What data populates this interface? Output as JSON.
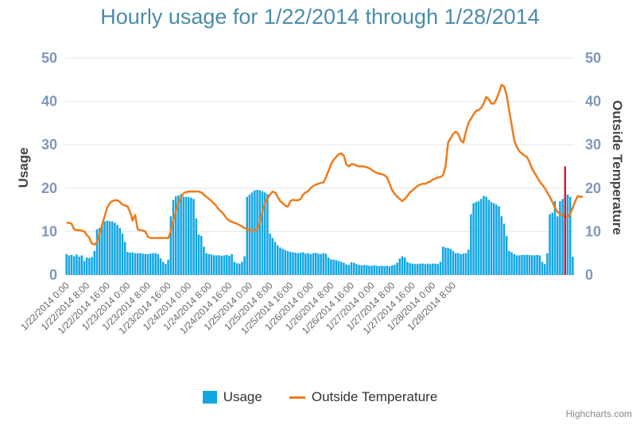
{
  "chart_data": {
    "type": "bar",
    "title": "Hourly usage for 1/22/2014 through 1/28/2014",
    "ylabel": "Usage",
    "y2label": "Outside Temperature",
    "ylim": [
      0,
      50
    ],
    "y2lim": [
      0,
      50
    ],
    "yticks": [
      "0",
      "10",
      "20",
      "30",
      "40",
      "50"
    ],
    "y2ticks": [
      "0",
      "10",
      "20",
      "30",
      "40",
      "50"
    ],
    "grid": true,
    "legend_position": "bottom",
    "xticks": [
      "1/22/2014 0:00",
      "1/22/2014 8:00",
      "1/22/2014 16:00",
      "1/23/2014 0:00",
      "1/23/2014 8:00",
      "1/23/2014 16:00",
      "1/24/2014 0:00",
      "1/24/2014 8:00",
      "1/24/2014 16:00",
      "1/25/2014 0:00",
      "1/25/2014 8:00",
      "1/25/2014 16:00",
      "1/26/2014 0:00",
      "1/26/2014 8:00",
      "1/26/2014 16:00",
      "1/27/2014 0:00",
      "1/27/2014 8:00",
      "1/27/2014 16:00",
      "1/28/2014 0:00",
      "1/28/2014 8:00"
    ],
    "series": [
      {
        "name": "Usage",
        "type": "column",
        "color": "#12a6e3",
        "values": [
          4.8,
          4.5,
          4.6,
          4.3,
          4.7,
          4.2,
          4.5,
          3.2,
          4.0,
          3.9,
          4.1,
          5.5,
          10.5,
          10.8,
          11.5,
          12.3,
          12.5,
          12.4,
          12.3,
          12.0,
          11.5,
          10.8,
          9.5,
          7.6,
          5.3,
          5.1,
          5.2,
          5.0,
          5.0,
          5.0,
          4.9,
          4.8,
          4.8,
          4.9,
          5.0,
          5.0,
          4.8,
          3.8,
          3.0,
          2.5,
          3.5,
          13.5,
          17.3,
          18.1,
          18.3,
          18.6,
          18.0,
          18.0,
          17.9,
          17.8,
          17.5,
          13.0,
          9.3,
          9.0,
          6.5,
          5.0,
          4.8,
          4.7,
          4.5,
          4.5,
          4.5,
          4.4,
          4.5,
          4.6,
          4.4,
          4.8,
          3.0,
          2.7,
          2.6,
          3.0,
          4.3,
          18.0,
          18.5,
          19.0,
          19.5,
          19.6,
          19.5,
          19.3,
          19.0,
          18.6,
          9.5,
          8.5,
          7.6,
          6.8,
          6.3,
          6.0,
          5.7,
          5.5,
          5.3,
          5.2,
          5.1,
          5.0,
          5.1,
          5.2,
          4.9,
          5.0,
          4.8,
          5.0,
          5.1,
          4.9,
          4.8,
          5.0,
          4.9,
          4.0,
          3.6,
          3.5,
          3.4,
          3.2,
          3.0,
          2.8,
          2.4,
          2.3,
          2.9,
          2.8,
          2.5,
          2.3,
          2.2,
          2.3,
          2.2,
          2.1,
          2.1,
          2.2,
          2.1,
          2.0,
          2.1,
          2.0,
          2.1,
          2.0,
          2.2,
          2.3,
          2.8,
          3.8,
          4.3,
          4.0,
          3.0,
          2.7,
          2.6,
          2.5,
          2.5,
          2.6,
          2.6,
          2.5,
          2.6,
          2.5,
          2.6,
          2.6,
          2.5,
          3.0,
          6.5,
          6.3,
          6.2,
          6.0,
          5.5,
          5.0,
          5.0,
          4.8,
          4.9,
          5.0,
          5.8,
          14.0,
          16.5,
          16.8,
          17.0,
          17.5,
          18.2,
          18.0,
          17.3,
          16.8,
          16.5,
          16.2,
          15.8,
          13.5,
          11.8,
          9.0,
          5.5,
          5.2,
          4.8,
          4.5,
          4.5,
          4.6,
          4.6,
          4.6,
          4.6,
          4.5,
          4.5,
          4.6,
          4.5,
          3.0,
          2.5,
          5.0,
          14.0,
          14.3,
          17.0,
          13.5,
          17.0,
          17.5,
          18.8,
          18.5,
          18.0,
          4.2
        ]
      },
      {
        "name": "Outside Temperature",
        "type": "line",
        "color": "#f07b1a",
        "values": [
          12.0,
          12.0,
          11.8,
          10.5,
          10.3,
          10.3,
          10.2,
          10.0,
          9.2,
          8.5,
          7.2,
          7.0,
          7.5,
          9.5,
          11.5,
          13.5,
          15.5,
          16.5,
          17.0,
          17.2,
          17.2,
          16.8,
          16.2,
          16.0,
          15.8,
          14.5,
          12.5,
          13.8,
          10.5,
          10.3,
          10.2,
          10.0,
          8.8,
          8.5,
          8.5,
          8.5,
          8.5,
          8.5,
          8.5,
          8.5,
          8.5,
          10.0,
          12.5,
          14.5,
          16.5,
          17.8,
          18.8,
          19.1,
          19.2,
          19.2,
          19.2,
          19.2,
          19.2,
          19.0,
          18.5,
          18.0,
          17.5,
          17.0,
          16.5,
          15.8,
          15.0,
          14.5,
          13.8,
          13.0,
          12.5,
          12.2,
          12.0,
          11.8,
          11.5,
          11.2,
          10.8,
          10.5,
          10.3,
          10.3,
          10.2,
          10.5,
          12.0,
          14.5,
          16.5,
          17.5,
          18.5,
          19.2,
          19.0,
          18.0,
          17.0,
          16.5,
          16.0,
          15.7,
          17.0,
          17.3,
          17.2,
          17.2,
          17.5,
          18.5,
          19.0,
          19.3,
          20.0,
          20.5,
          20.8,
          21.0,
          21.2,
          21.3,
          22.5,
          24.0,
          25.5,
          26.5,
          27.2,
          27.8,
          28.0,
          27.5,
          25.5,
          25.0,
          25.5,
          25.5,
          25.2,
          25.0,
          25.0,
          25.0,
          24.8,
          24.6,
          24.2,
          23.8,
          23.5,
          23.3,
          23.2,
          23.0,
          22.5,
          21.0,
          19.5,
          18.7,
          18.0,
          17.5,
          17.0,
          17.5,
          18.2,
          19.0,
          19.5,
          20.0,
          20.5,
          20.8,
          21.0,
          21.0,
          21.3,
          21.5,
          22.0,
          22.2,
          22.5,
          22.5,
          23.0,
          25.0,
          30.5,
          31.5,
          32.5,
          33.0,
          32.5,
          31.0,
          30.5,
          33.0,
          35.0,
          36.0,
          37.0,
          37.8,
          38.0,
          38.5,
          39.5,
          41.0,
          40.5,
          39.5,
          39.5,
          40.5,
          42.0,
          43.8,
          43.5,
          41.5,
          38.0,
          34.5,
          31.0,
          29.5,
          28.5,
          28.0,
          27.5,
          27.2,
          26.0,
          24.5,
          23.5,
          22.5,
          21.5,
          20.8,
          20.0,
          19.0,
          18.0,
          16.8,
          15.5,
          14.5,
          14.0,
          13.8,
          13.5,
          13.3,
          14.0,
          15.5,
          17.0,
          18.2,
          18.0,
          18.0
        ]
      }
    ],
    "annotations": [
      {
        "type": "marker",
        "index": 196,
        "value": 25,
        "color": "#cc1d3a"
      }
    ]
  },
  "legend": {
    "usage_label": "Usage",
    "temperature_label": "Outside Temperature"
  },
  "credits": "Highcharts.com"
}
